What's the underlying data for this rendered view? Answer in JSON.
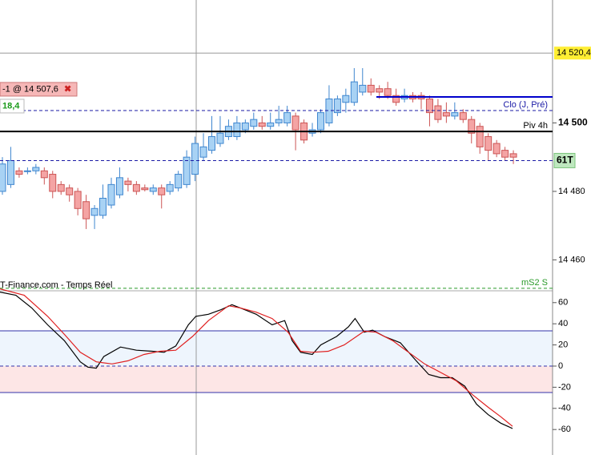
{
  "chart_data": [
    {
      "type": "candlestick",
      "ylim": [
        14451.2,
        14535.9
      ],
      "yticks": [
        {
          "value": 14500,
          "label": "14 500"
        },
        {
          "value": 14480,
          "label": "14 480"
        },
        {
          "value": 14460,
          "label": "14 460"
        }
      ],
      "up_color": "#a8d2f4",
      "down_color": "#f4a4a4",
      "open": [
        14480,
        14482,
        14486,
        14486,
        14486,
        14486,
        14485,
        14482,
        14481,
        14480,
        14477,
        14473,
        14473,
        14476,
        14479,
        14483,
        14482,
        14481,
        14480,
        14481,
        14480,
        14481,
        14482,
        14485,
        14490,
        14492,
        14494,
        14496,
        14496,
        14498,
        14499,
        14500,
        14499,
        14500,
        14500,
        14502,
        14500,
        14497,
        14498,
        14500,
        14503,
        14506,
        14506,
        14509,
        14511,
        14510,
        14510,
        14508,
        14507,
        14508,
        14508,
        14507,
        14505,
        14503,
        14502,
        14503,
        14501,
        14499,
        14496,
        14494,
        14492,
        14491
      ],
      "high": [
        14490,
        14493,
        14487,
        14487,
        14488,
        14487,
        14486,
        14483,
        14482,
        14481,
        14479,
        14476,
        14482,
        14484,
        14487,
        14484,
        14483,
        14482,
        14482,
        14482,
        14483,
        14486,
        14492,
        14496,
        14497,
        14502,
        14502,
        14501,
        14502,
        14501,
        14503,
        14502,
        14503,
        14505,
        14505,
        14503,
        14501,
        14500,
        14504,
        14511,
        14508,
        14510,
        14516,
        14516,
        14513,
        14511,
        14512,
        14510,
        14510,
        14509,
        14509,
        14508,
        14507,
        14506,
        14506,
        14504,
        14502,
        14500,
        14497,
        14495,
        14493,
        14492
      ],
      "low": [
        14479,
        14481,
        14484,
        14485,
        14485,
        14482,
        14478,
        14479,
        14477,
        14473,
        14469,
        14469,
        14472,
        14475,
        14478,
        14480,
        14479,
        14480,
        14479,
        14475,
        14479,
        14480,
        14481,
        14483,
        14489,
        14491,
        14493,
        14495,
        14495,
        14497,
        14498,
        14498,
        14498,
        14499,
        14499,
        14492,
        14494,
        14496,
        14497,
        14499,
        14502,
        14503,
        14505,
        14508,
        14508,
        14507,
        14507,
        14505,
        14506,
        14506,
        14504,
        14499,
        14500,
        14500,
        14501,
        14500,
        14494,
        14491,
        14489,
        14490,
        14489,
        14488
      ],
      "close": [
        14488,
        14489,
        14485,
        14486,
        14487,
        14484,
        14480,
        14480,
        14479,
        14475,
        14472,
        14475,
        14478,
        14482,
        14484,
        14482,
        14480,
        14480.5,
        14481,
        14479,
        14482,
        14485,
        14490,
        14494,
        14493,
        14496,
        14497,
        14499,
        14500,
        14500,
        14501,
        14499,
        14500,
        14501,
        14503,
        14498,
        14495,
        14498,
        14503,
        14507,
        14507,
        14508,
        14512,
        14511,
        14509,
        14509,
        14508,
        14506,
        14508,
        14507,
        14507,
        14503,
        14501,
        14502,
        14503,
        14501,
        14497,
        14493,
        14492,
        14491,
        14490,
        14490
      ],
      "price_marker": {
        "value": 14520.4,
        "label": "14 520,4"
      },
      "order": {
        "label": "-1 @ 14 507,6",
        "value": 14507.6,
        "color": "#0000cc"
      },
      "badge": "18,4",
      "levels": [
        {
          "label": "Clo (J, Pré)",
          "value": 14503.6,
          "color": "#1a1aa6",
          "style": "dashed"
        },
        {
          "label": "Piv 4h",
          "value": 14497.5,
          "color": "#000000",
          "style": "solid"
        },
        {
          "label": "61T",
          "value": 14489,
          "color": "#1a1aa6",
          "style": "dashed",
          "boxed": true
        },
        {
          "label": "mS2 S",
          "value": 14451.7,
          "color": "#2a9a2a",
          "style": "dashed"
        }
      ],
      "source": "IT-Finance.com - Temps Réel"
    },
    {
      "type": "line",
      "ylim": [
        -84.1,
        71.2
      ],
      "yticks": [
        60,
        40,
        20,
        0,
        -20,
        -40,
        -60
      ],
      "bands": {
        "upper": 33.3,
        "lower": -25
      },
      "lines": [
        {
          "color": "#000000",
          "x": [
            -0.3,
            1.6,
            3.5,
            5.4,
            7.4,
            9.3,
            10.2,
            11.2,
            12.1,
            14.1,
            16.0,
            17.9,
            19.3,
            20.7,
            22.2,
            23.1,
            24.6,
            26.0,
            27.4,
            28.4,
            30.3,
            32.2,
            33.7,
            34.6,
            35.6,
            37.0,
            38.0,
            39.9,
            41.3,
            42.1,
            43.2,
            44.2,
            45.6,
            47.5,
            49.4,
            50.9,
            52.3,
            53.7,
            55.2,
            56.6,
            58.0,
            59.5,
            60.9
          ],
          "values": [
            70,
            67,
            55,
            39,
            24,
            4,
            -1,
            -2,
            9,
            18,
            15,
            14,
            13,
            19,
            39,
            47,
            49,
            53,
            58,
            55,
            49,
            39,
            43,
            24,
            13,
            11,
            20,
            28,
            37,
            45,
            32,
            34,
            28,
            22,
            5,
            -8,
            -11,
            -11,
            -19,
            -36,
            -46,
            -54,
            -59
          ]
        },
        {
          "color": "#e02020",
          "x": [
            -0.3,
            2.6,
            5.4,
            7.4,
            9.3,
            11.2,
            13.1,
            15.0,
            16.9,
            18.8,
            20.7,
            22.7,
            24.6,
            27.0,
            28.4,
            30.3,
            32.2,
            34.1,
            35.6,
            37.0,
            38.9,
            40.8,
            43.2,
            44.6,
            46.6,
            48.5,
            50.4,
            52.3,
            54.2,
            56.1,
            58.0,
            59.5,
            60.9
          ],
          "values": [
            73,
            67,
            47,
            30,
            13,
            4,
            2,
            5,
            11,
            14,
            15,
            28,
            43,
            57,
            55,
            51,
            45,
            32,
            14,
            13,
            14,
            20,
            33,
            32,
            24,
            13,
            2,
            -6,
            -14,
            -27,
            -39,
            -48,
            -57
          ]
        }
      ]
    }
  ]
}
